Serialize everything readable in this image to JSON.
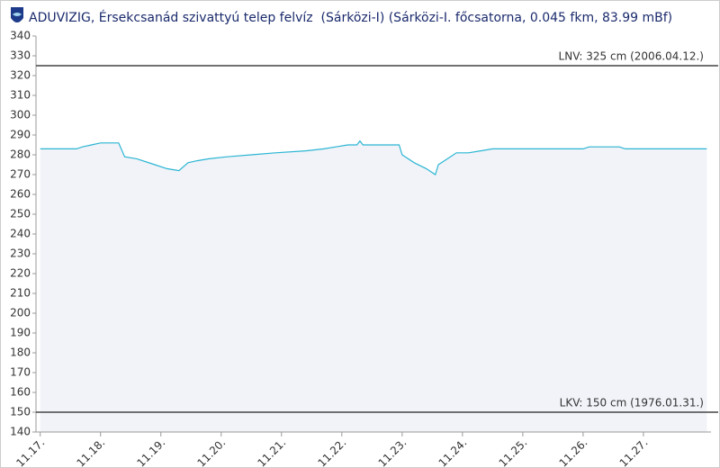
{
  "chart_data": {
    "type": "area",
    "title": "ADUVIZIG, Érsekcsanád szivattyú telep felvíz  (Sárközi-I) (Sárközi-I. főcsatorna, 0.045 fkm, 83.99 mBf)",
    "x": [
      17.0,
      17.6,
      17.7,
      17.85,
      18.0,
      18.3,
      18.4,
      18.6,
      18.9,
      19.1,
      19.3,
      19.45,
      19.6,
      19.8,
      20.1,
      20.5,
      20.9,
      21.4,
      21.7,
      21.9,
      22.1,
      22.25,
      22.3,
      22.35,
      22.5,
      22.95,
      23.0,
      23.2,
      23.4,
      23.55,
      23.6,
      23.8,
      23.9,
      24.1,
      24.3,
      24.5,
      25.0,
      26.0,
      26.1,
      26.6,
      26.7,
      28.05
    ],
    "values": [
      283,
      283,
      284,
      285,
      286,
      286,
      279,
      278,
      275,
      273,
      272,
      276,
      277,
      278,
      279,
      280,
      281,
      282,
      283,
      284,
      285,
      285,
      287,
      285,
      285,
      285,
      280,
      276,
      273,
      270,
      275,
      279,
      281,
      281,
      282,
      283,
      283,
      283,
      284,
      284,
      283,
      283
    ],
    "color": "#2bb5d3",
    "fill_color": "#f1f3f8",
    "xlim": [
      16.93,
      28.12
    ],
    "xticks": [
      {
        "value": 17,
        "label": "11.17."
      },
      {
        "value": 18,
        "label": "11.18."
      },
      {
        "value": 19,
        "label": "11.19."
      },
      {
        "value": 20,
        "label": "11.20."
      },
      {
        "value": 21,
        "label": "11.21."
      },
      {
        "value": 22,
        "label": "11.22."
      },
      {
        "value": 23,
        "label": "11.23."
      },
      {
        "value": 24,
        "label": "11.24."
      },
      {
        "value": 25,
        "label": "11.25."
      },
      {
        "value": 26,
        "label": "11.26."
      },
      {
        "value": 27,
        "label": "11.27."
      }
    ],
    "ylim": [
      140,
      340
    ],
    "yticks": [
      140,
      150,
      160,
      170,
      180,
      190,
      200,
      210,
      220,
      230,
      240,
      250,
      260,
      270,
      280,
      290,
      300,
      310,
      320,
      330,
      340
    ],
    "reference_lines": [
      {
        "value": 325,
        "label": "LNV: 325 cm (2006.04.12.)"
      },
      {
        "value": 150,
        "label": "LKV: 150 cm (1976.01.31.)"
      }
    ]
  }
}
